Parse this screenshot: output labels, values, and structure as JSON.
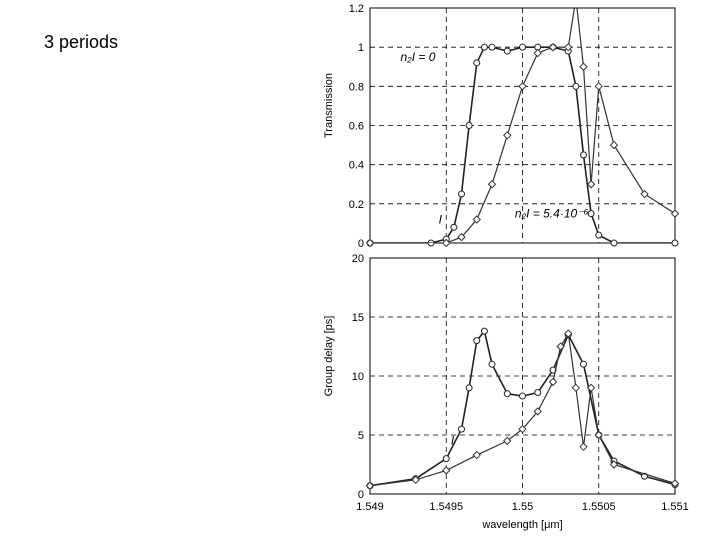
{
  "slide": {
    "title": "3 periods"
  },
  "chart_data": [
    {
      "type": "line",
      "ylabel": "Transmission",
      "xlabel": "",
      "xlim": [
        1.549,
        1.551
      ],
      "ylim": [
        0,
        1.2
      ],
      "yticks": [
        "0",
        "0.2",
        "0.4",
        "0.6",
        "0.8",
        "1",
        "1.2"
      ],
      "grid": true,
      "series": [
        {
          "name": "n₂I = 0",
          "x": [
            1.549,
            1.5494,
            1.5495,
            1.54955,
            1.5496,
            1.54965,
            1.5497,
            1.54975,
            1.5498,
            1.5499,
            1.55,
            1.5501,
            1.5502,
            1.5503,
            1.55035,
            1.5504,
            1.55045,
            1.5505,
            1.5506,
            1.551
          ],
          "y": [
            0.0,
            0.0,
            0.02,
            0.08,
            0.25,
            0.6,
            0.92,
            1.0,
            1.0,
            0.98,
            1.0,
            1.0,
            1.0,
            0.98,
            0.8,
            0.45,
            0.15,
            0.04,
            0.0,
            0.0
          ]
        },
        {
          "name": "n₂I = 5.4·10⁻⁶",
          "x": [
            1.549,
            1.5495,
            1.5496,
            1.5497,
            1.5498,
            1.5499,
            1.55,
            1.5501,
            1.5502,
            1.5503,
            1.55035,
            1.5504,
            1.55045,
            1.5505,
            1.5506,
            1.5508,
            1.551
          ],
          "y": [
            0.0,
            0.0,
            0.03,
            0.12,
            0.3,
            0.55,
            0.8,
            0.97,
            1.0,
            1.0,
            1.25,
            0.9,
            0.3,
            0.8,
            0.5,
            0.25,
            0.15
          ]
        }
      ],
      "annotations": [
        {
          "text": "n₂I = 0",
          "x": 1.5492,
          "y": 0.93
        },
        {
          "text": "n₂I = 5.4·10⁻⁶",
          "x": 1.54995,
          "y": 0.13
        },
        {
          "text": "I",
          "x": 1.54945,
          "y": 0.1
        }
      ]
    },
    {
      "type": "line",
      "ylabel": "Group delay [ps]",
      "xlabel": "wavelength [μm]",
      "xlim": [
        1.549,
        1.551
      ],
      "ylim": [
        0,
        20
      ],
      "xticks": [
        "1.549",
        "1.5495",
        "1.55",
        "1.5505",
        "1.551"
      ],
      "yticks": [
        "0",
        "5",
        "10",
        "15",
        "20"
      ],
      "grid": true,
      "series": [
        {
          "name": "n₂I = 0",
          "x": [
            1.549,
            1.5493,
            1.5495,
            1.5496,
            1.54965,
            1.5497,
            1.54975,
            1.5498,
            1.5499,
            1.55,
            1.5501,
            1.5502,
            1.5503,
            1.5504,
            1.5505,
            1.5506,
            1.5508,
            1.551
          ],
          "y": [
            0.7,
            1.3,
            3.0,
            5.5,
            9.0,
            13.0,
            13.8,
            11.0,
            8.5,
            8.3,
            8.6,
            10.5,
            13.5,
            11.0,
            5.0,
            2.8,
            1.5,
            0.8
          ]
        },
        {
          "name": "n₂I = 5.4·10⁻⁶",
          "x": [
            1.549,
            1.5493,
            1.5495,
            1.5497,
            1.5499,
            1.55,
            1.5501,
            1.5502,
            1.55025,
            1.5503,
            1.55035,
            1.5504,
            1.55045,
            1.5505,
            1.5506,
            1.551
          ],
          "y": [
            0.7,
            1.2,
            2.0,
            3.3,
            4.5,
            5.5,
            7.0,
            9.5,
            12.5,
            13.6,
            9.0,
            4.0,
            9.0,
            5.0,
            2.5,
            0.9
          ]
        }
      ],
      "annotations": [
        {
          "text": "I",
          "x": 1.54953,
          "y": 4.2
        }
      ]
    }
  ]
}
